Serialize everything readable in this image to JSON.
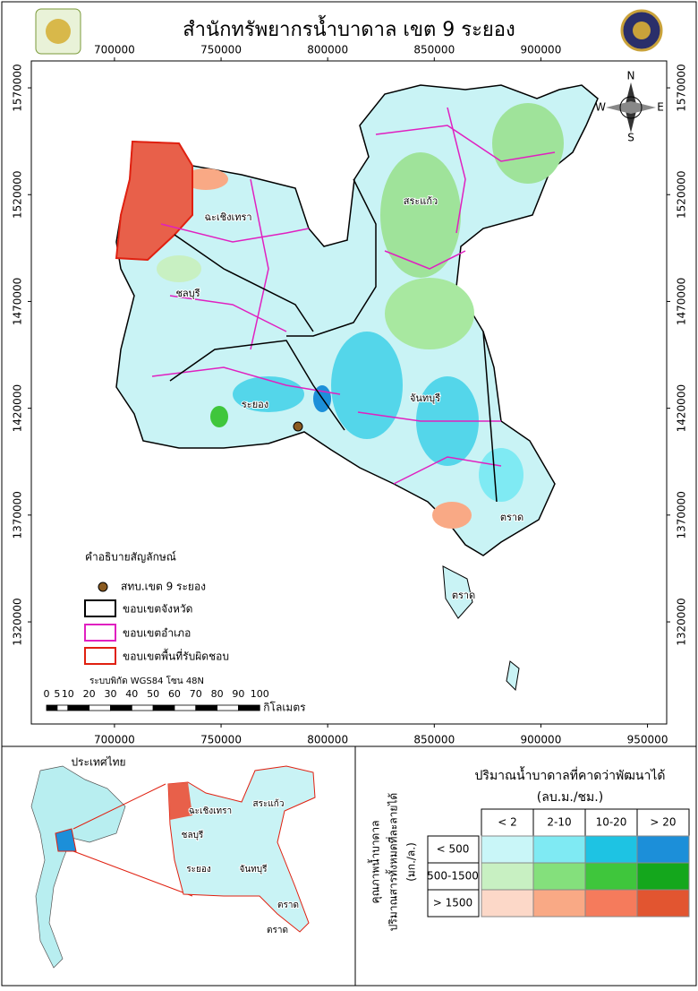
{
  "header": {
    "title": "สำนักทรัพยากรน้ำบาดาล เขต 9 ระยอง"
  },
  "map": {
    "xlim": [
      661000,
      959000
    ],
    "ylim": [
      1272200,
      1582600
    ],
    "xticks_top": [
      700000,
      750000,
      800000,
      850000,
      900000
    ],
    "xticks_bottom": [
      700000,
      750000,
      800000,
      850000,
      900000,
      950000
    ],
    "yticks": [
      1570000,
      1520000,
      1470000,
      1420000,
      1370000,
      1320000
    ]
  },
  "compass": {
    "n": "N",
    "e": "E",
    "s": "S",
    "w": "W"
  },
  "place_labels": [
    "ฉะเชิงเทรา",
    "สระแก้ว",
    "ชลบุรี",
    "ระยอง",
    "จันทบุรี",
    "ตราด",
    "ตราด"
  ],
  "legend": {
    "title": "คำอธิบายสัญลักษณ์",
    "items": [
      "สทบ.เขต 9 ระยอง",
      "ขอบเขตจังหวัด",
      "ขอบเขตอำเภอ",
      "ขอบเขตพื้นที่รับผิดชอบ"
    ]
  },
  "crs": "ระบบพิกัด WGS84 โซน 48N",
  "scale_bar": {
    "ticks": [
      0,
      5,
      10,
      20,
      30,
      40,
      50,
      60,
      70,
      80,
      90,
      100
    ],
    "unit": "กิโลเมตร"
  },
  "inset": {
    "title": "ประเทศไทย",
    "labels": [
      "ฉะเชิงเทรา",
      "สระแก้ว",
      "ชลบุรี",
      "ระยอง",
      "จันทบุรี",
      "ตราด",
      "ตราด"
    ]
  },
  "matrix": {
    "title": "ปริมาณน้ำบาดาลที่คาดว่าพัฒนาได้",
    "unit": "(ลบ.ม./ชม.)",
    "columns": [
      "< 2",
      "2-10",
      "10-20",
      "> 20"
    ],
    "rows": [
      "< 500",
      "500-1500",
      "> 1500"
    ],
    "row_title": [
      "คุณภาพน้ำบาดาล",
      "ปริมาณสารทั้งหมดที่ละลายได้",
      "(มก./ล.)"
    ],
    "colors": [
      [
        "#c9f6f8",
        "#7feaf3",
        "#1ec3e3",
        "#1c8fd9"
      ],
      [
        "#c8f0c2",
        "#84e07c",
        "#3fc63c",
        "#14a71c"
      ],
      [
        "#fcd8c8",
        "#f9a985",
        "#f57b5c",
        "#e25530"
      ]
    ]
  }
}
